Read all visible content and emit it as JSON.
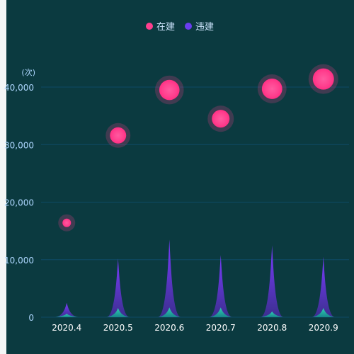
{
  "chart_data": {
    "type": "scatter+pictorial-bar",
    "categories": [
      "2020.4",
      "2020.5",
      "2020.6",
      "2020.7",
      "2020.8",
      "2020.9"
    ],
    "y_unit": "(次)",
    "y_ticks": [
      "0",
      "10,000",
      "20,000",
      "30,000",
      "40,000"
    ],
    "ylim": [
      0,
      40000
    ],
    "grid": true,
    "legend_position": "top-center",
    "series": [
      {
        "name": "在建",
        "type": "scatter",
        "values": [
          16400,
          31600,
          39500,
          34500,
          39700,
          41400
        ],
        "color": "#ff3f8e"
      },
      {
        "name": "违建",
        "type": "pictorial-bar",
        "values": [
          2500,
          10200,
          13500,
          10800,
          12500,
          10500
        ],
        "color": "#6a3df0"
      },
      {
        "name": "",
        "type": "pictorial-bar",
        "values": [
          600,
          1600,
          1700,
          1700,
          1000,
          1600
        ],
        "color": "#1fd1b2"
      }
    ]
  }
}
